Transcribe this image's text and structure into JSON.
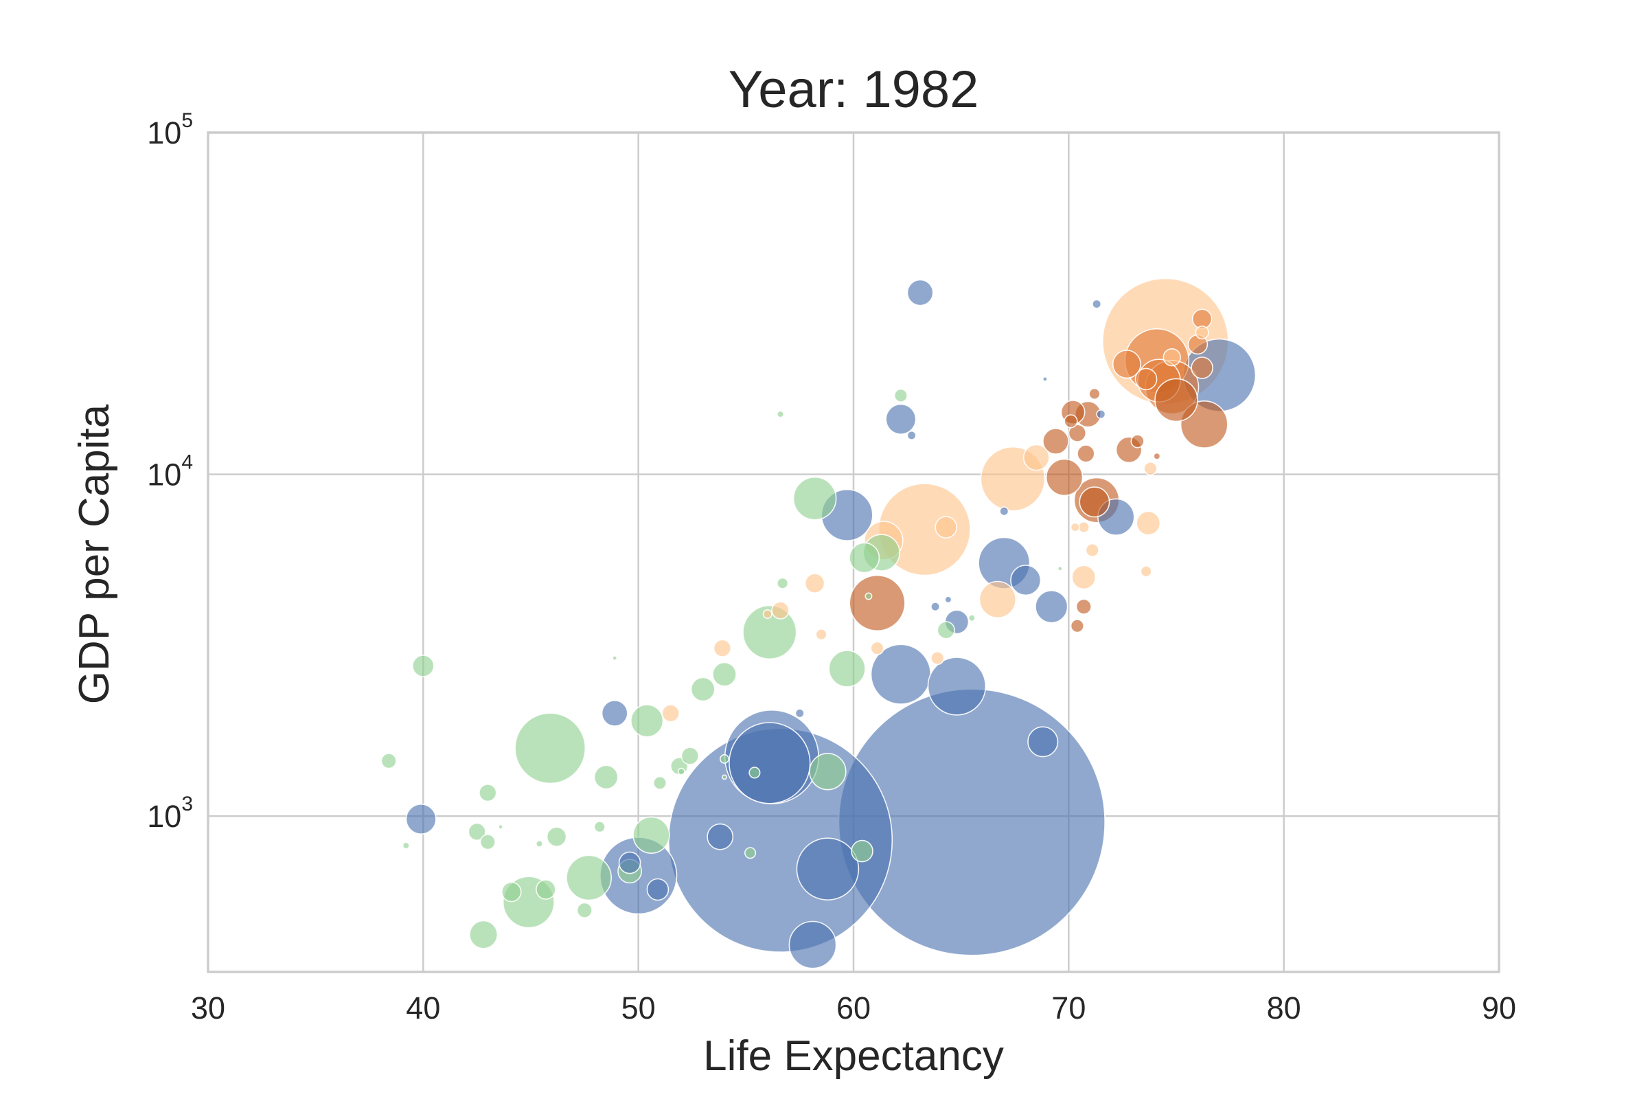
{
  "chart_data": {
    "type": "scatter",
    "title": "Year: 1982",
    "xlabel": "Life Expectancy",
    "ylabel": "GDP per Capita",
    "xlim": [
      30,
      90
    ],
    "ylim": [
      350,
      100000
    ],
    "yscale": "log",
    "grid": true,
    "legend": "none",
    "x_ticks": [
      "30",
      "40",
      "50",
      "60",
      "70",
      "80",
      "90"
    ],
    "y_ticks": [
      {
        "value": 1000,
        "base": "10",
        "exp": "3"
      },
      {
        "value": 10000,
        "base": "10",
        "exp": "4"
      },
      {
        "value": 100000,
        "base": "10",
        "exp": "5"
      }
    ],
    "colors": {
      "blue": "#4c72b0",
      "green": "#8fd18f",
      "peach": "#ffc48a",
      "orange": "#e07b39",
      "brown": "#c05a1e"
    },
    "series": [
      {
        "color": "#4c72b0",
        "points": [
          [
            65.5,
            960,
            125
          ],
          [
            56.6,
            850,
            105
          ],
          [
            56.2,
            1490,
            44
          ],
          [
            56.1,
            1430,
            38
          ],
          [
            50.0,
            670,
            36
          ],
          [
            77.0,
            19500,
            34
          ],
          [
            63.3,
            6950,
            0
          ],
          [
            67.0,
            5500,
            24
          ],
          [
            62.2,
            2600,
            28
          ],
          [
            64.8,
            2400,
            27
          ],
          [
            59.7,
            7600,
            24
          ],
          [
            58.8,
            700,
            29
          ],
          [
            58.1,
            420,
            22
          ],
          [
            72.2,
            7500,
            17
          ],
          [
            68.0,
            4900,
            14
          ],
          [
            69.2,
            4100,
            15
          ],
          [
            62.2,
            14500,
            14
          ],
          [
            63.1,
            34000,
            12
          ],
          [
            64.8,
            3700,
            11
          ],
          [
            68.8,
            1650,
            14
          ],
          [
            39.9,
            980,
            14
          ],
          [
            48.9,
            2000,
            12
          ],
          [
            53.8,
            870,
            12
          ],
          [
            49.6,
            730,
            10
          ],
          [
            50.9,
            610,
            10
          ],
          [
            57.5,
            2000,
            4
          ],
          [
            71.5,
            15000,
            4
          ],
          [
            71.3,
            31500,
            4
          ],
          [
            67.0,
            7800,
            4
          ],
          [
            64.4,
            4300,
            3
          ],
          [
            63.8,
            4100,
            4
          ],
          [
            62.7,
            13000,
            4
          ],
          [
            68.9,
            19000,
            2
          ]
        ]
      },
      {
        "color": "#8fd18f",
        "points": [
          [
            45.9,
            1580,
            33
          ],
          [
            56.1,
            3450,
            25
          ],
          [
            58.2,
            8500,
            20
          ],
          [
            61.3,
            5900,
            17
          ],
          [
            60.5,
            5700,
            14
          ],
          [
            50.4,
            1900,
            15
          ],
          [
            59.7,
            2700,
            17
          ],
          [
            58.8,
            1350,
            17
          ],
          [
            47.7,
            660,
            21
          ],
          [
            44.9,
            560,
            24
          ],
          [
            50.6,
            880,
            17
          ],
          [
            40.0,
            2750,
            10
          ],
          [
            48.5,
            1300,
            11
          ],
          [
            43.0,
            1170,
            8
          ],
          [
            38.4,
            1450,
            7
          ],
          [
            42.8,
            450,
            13
          ],
          [
            46.2,
            870,
            9
          ],
          [
            49.6,
            690,
            11
          ],
          [
            53.0,
            2350,
            11
          ],
          [
            54.0,
            2600,
            11
          ],
          [
            51.9,
            1400,
            8
          ],
          [
            52.4,
            1500,
            8
          ],
          [
            42.5,
            900,
            8
          ],
          [
            43.0,
            840,
            7
          ],
          [
            44.1,
            600,
            9
          ],
          [
            45.7,
            610,
            9
          ],
          [
            47.5,
            530,
            7
          ],
          [
            48.2,
            930,
            5
          ],
          [
            60.4,
            790,
            10
          ],
          [
            64.3,
            3500,
            8
          ],
          [
            62.2,
            17000,
            6
          ],
          [
            56.7,
            4800,
            5
          ],
          [
            51.0,
            1250,
            6
          ],
          [
            55.2,
            780,
            5
          ],
          [
            55.4,
            1340,
            5
          ],
          [
            39.2,
            820,
            3
          ],
          [
            45.4,
            830,
            3
          ],
          [
            43.6,
            930,
            2
          ],
          [
            65.5,
            3800,
            3
          ],
          [
            60.7,
            4400,
            3
          ],
          [
            54.0,
            1470,
            4
          ],
          [
            52.0,
            1350,
            3
          ],
          [
            69.6,
            5300,
            2
          ],
          [
            56.6,
            15000,
            3
          ],
          [
            48.9,
            2900,
            2
          ],
          [
            54.0,
            1300,
            2
          ]
        ]
      },
      {
        "color": "#ffc48a",
        "points": [
          [
            74.5,
            24500,
            59
          ],
          [
            63.3,
            6900,
            43
          ],
          [
            67.4,
            9700,
            30
          ],
          [
            61.4,
            6400,
            18
          ],
          [
            66.7,
            4300,
            17
          ],
          [
            68.5,
            11200,
            12
          ],
          [
            70.7,
            5000,
            11
          ],
          [
            73.7,
            7200,
            11
          ],
          [
            58.2,
            4800,
            9
          ],
          [
            53.9,
            3100,
            8
          ],
          [
            51.5,
            2000,
            8
          ],
          [
            56.6,
            4000,
            8
          ],
          [
            64.3,
            7000,
            10
          ],
          [
            71.1,
            6000,
            6
          ],
          [
            63.9,
            2900,
            6
          ],
          [
            61.1,
            3100,
            6
          ],
          [
            58.5,
            3400,
            5
          ],
          [
            70.7,
            7000,
            5
          ],
          [
            73.6,
            5200,
            5
          ],
          [
            73.8,
            10400,
            6
          ],
          [
            74.8,
            22000,
            8
          ],
          [
            76.2,
            26000,
            6
          ],
          [
            56.0,
            3900,
            4
          ],
          [
            70.3,
            7000,
            4
          ]
        ]
      },
      {
        "color": "#e07b39",
        "points": [
          [
            74.1,
            21500,
            30
          ],
          [
            74.8,
            18000,
            25
          ],
          [
            74.2,
            18800,
            20
          ],
          [
            72.7,
            21000,
            13
          ],
          [
            76.0,
            24000,
            9
          ],
          [
            76.2,
            20500,
            10
          ],
          [
            76.2,
            28500,
            9
          ],
          [
            73.6,
            19000,
            10
          ]
        ]
      },
      {
        "color": "#c05a1e",
        "points": [
          [
            61.1,
            4200,
            26
          ],
          [
            71.3,
            8400,
            21
          ],
          [
            76.3,
            14000,
            22
          ],
          [
            75.0,
            16500,
            20
          ],
          [
            69.8,
            9800,
            17
          ],
          [
            70.2,
            15200,
            11
          ],
          [
            70.9,
            15000,
            12
          ],
          [
            69.4,
            12500,
            12
          ],
          [
            70.4,
            13200,
            8
          ],
          [
            72.8,
            11800,
            12
          ],
          [
            70.8,
            11500,
            8
          ],
          [
            71.2,
            8300,
            14
          ],
          [
            70.7,
            4100,
            7
          ],
          [
            70.4,
            3600,
            6
          ],
          [
            73.2,
            12500,
            6
          ],
          [
            71.2,
            17200,
            5
          ],
          [
            70.1,
            14300,
            6
          ],
          [
            74.1,
            11300,
            3
          ]
        ]
      }
    ]
  }
}
